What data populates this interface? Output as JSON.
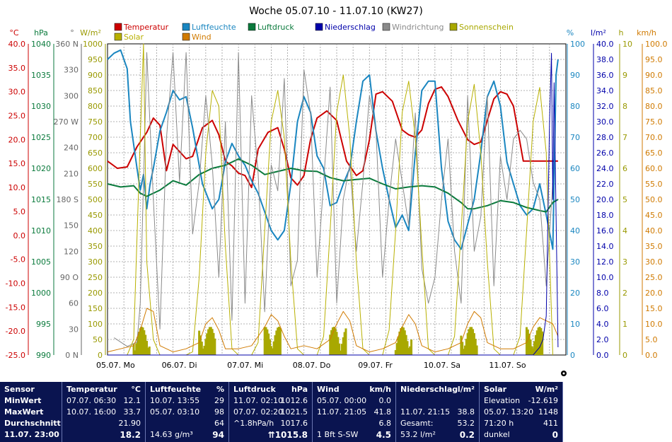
{
  "chart_data": {
    "type": "line",
    "title": "Woche 05.07.10 - 11.07.10 (KW27)",
    "legend": [
      {
        "label": "Temperatur",
        "color": "#cc0000"
      },
      {
        "label": "Luftfeuchte",
        "color": "#1a86c0"
      },
      {
        "label": "Luftdruck",
        "color": "#0a7a3c"
      },
      {
        "label": "Niederschlag",
        "color": "#0000aa"
      },
      {
        "label": "Windrichtung",
        "color": "#8a8a8a"
      },
      {
        "label": "Sonnenschein",
        "color": "#a8a800"
      },
      {
        "label": "Solar",
        "color": "#b8b000"
      },
      {
        "label": "Wind",
        "color": "#d07a00"
      }
    ],
    "axis_units": {
      "temp": "°C",
      "pressure": "hPa",
      "winddir": "°",
      "solar": "W/m²",
      "humidity": "%",
      "rain": "l/m²",
      "sunshine": "h",
      "wind": "km/h"
    },
    "axis_colors": {
      "temp": "#cc0000",
      "pressure": "#0a7a3c",
      "winddir": "#666666",
      "solar": "#999900",
      "humidity": "#1a86c0",
      "rain": "#0000aa",
      "sunshine": "#999900",
      "wind": "#d07a00"
    },
    "axes": {
      "temp": {
        "range": [
          -25,
          40
        ],
        "ticks": [
          "40.0",
          "35.0",
          "30.0",
          "25.0",
          "20.0",
          "15.0",
          "10.0",
          "5.0",
          "0.0",
          "-5.0",
          "-10.0",
          "-15.0",
          "-20.0",
          "-25.0"
        ]
      },
      "pressure": {
        "range": [
          990,
          1040
        ],
        "ticks": [
          "1040",
          "1035",
          "1030",
          "1025",
          "1020",
          "1015",
          "1010",
          "1005",
          "1000",
          "995",
          "990"
        ]
      },
      "winddir": {
        "range": [
          0,
          360
        ],
        "ticks": [
          "360 N",
          "330",
          "300",
          "270 W",
          "240",
          "210",
          "180 S",
          "150",
          "120",
          "90 O",
          "60",
          "30",
          "0 N"
        ]
      },
      "solar": {
        "range": [
          0,
          1000
        ],
        "ticks": [
          "1000",
          "950",
          "900",
          "850",
          "800",
          "750",
          "700",
          "650",
          "600",
          "550",
          "500",
          "450",
          "400",
          "350",
          "300",
          "250",
          "200",
          "150",
          "100",
          "50",
          "0"
        ]
      },
      "humidity": {
        "range": [
          0,
          100
        ],
        "ticks": [
          "100",
          "90",
          "80",
          "70",
          "60",
          "50",
          "40",
          "30",
          "20",
          "10",
          "0"
        ]
      },
      "rain": {
        "range": [
          0,
          40
        ],
        "ticks": [
          "40.0",
          "38.0",
          "36.0",
          "34.0",
          "32.0",
          "30.0",
          "28.0",
          "26.0",
          "24.0",
          "22.0",
          "20.0",
          "18.0",
          "16.0",
          "14.0",
          "12.0",
          "10.0",
          "8.0",
          "6.0",
          "4.0",
          "2.0",
          "0.0"
        ]
      },
      "sunshine": {
        "range": [
          0,
          10
        ],
        "ticks": [
          "10",
          "9",
          "8",
          "7",
          "6",
          "5",
          "4",
          "3",
          "2",
          "1",
          "0"
        ]
      },
      "wind": {
        "range": [
          0,
          100
        ],
        "ticks": [
          "100.0",
          "95.0",
          "90.0",
          "85.0",
          "80.0",
          "75.0",
          "70.0",
          "65.0",
          "60.0",
          "55.0",
          "50.0",
          "45.0",
          "40.0",
          "35.0",
          "30.0",
          "25.0",
          "20.0",
          "15.0",
          "10.0",
          "5.0",
          "0.0"
        ]
      }
    },
    "x_labels": [
      "05.07. Mo",
      "06.07. Di",
      "07.07. Mi",
      "08.07. Do",
      "09.07. Fr",
      "10.07. Sa",
      "11.07. So"
    ],
    "grid": true,
    "days": 7,
    "series": [
      {
        "name": "Temperatur",
        "axis": "temp",
        "color": "#cc0000",
        "x": [
          0,
          0.15,
          0.3,
          0.45,
          0.6,
          0.7,
          0.8,
          0.9,
          1.0,
          1.1,
          1.2,
          1.3,
          1.45,
          1.6,
          1.7,
          1.8,
          1.9,
          2.0,
          2.1,
          2.2,
          2.3,
          2.45,
          2.6,
          2.7,
          2.8,
          2.9,
          3.0,
          3.1,
          3.2,
          3.35,
          3.5,
          3.65,
          3.8,
          3.9,
          4.0,
          4.1,
          4.2,
          4.35,
          4.5,
          4.6,
          4.7,
          4.8,
          4.9,
          5.0,
          5.1,
          5.2,
          5.35,
          5.5,
          5.6,
          5.7,
          5.8,
          5.9,
          6.0,
          6.1,
          6.2,
          6.35,
          6.5,
          6.6,
          6.7,
          6.8,
          6.88
        ],
        "y": [
          15.5,
          14.0,
          14.3,
          18.5,
          21.5,
          24.5,
          23.0,
          13.5,
          19.0,
          17.5,
          16.0,
          16.5,
          22.5,
          24.0,
          21.0,
          15.5,
          14.5,
          13.0,
          12.5,
          10.0,
          18.0,
          21.5,
          22.5,
          18.0,
          12.0,
          10.5,
          12.5,
          20.0,
          24.5,
          26.0,
          24.0,
          15.5,
          12.5,
          13.5,
          20.0,
          29.5,
          30.0,
          28.0,
          22.0,
          21.0,
          20.5,
          22.0,
          27.5,
          30.5,
          31.0,
          29.0,
          24.0,
          20.0,
          19.0,
          19.5,
          24.0,
          28.5,
          30.0,
          29.5,
          27.0,
          15.5,
          15.5,
          15.5,
          15.5,
          15.5,
          15.5
        ]
      },
      {
        "name": "Luftfeuchte",
        "axis": "humidity",
        "color": "#1a86c0",
        "x": [
          0,
          0.1,
          0.2,
          0.3,
          0.35,
          0.45,
          0.5,
          0.55,
          0.6,
          0.65,
          0.7,
          0.8,
          0.9,
          1.0,
          1.1,
          1.2,
          1.3,
          1.45,
          1.6,
          1.7,
          1.8,
          1.9,
          2.0,
          2.1,
          2.2,
          2.3,
          2.4,
          2.5,
          2.6,
          2.7,
          2.8,
          2.9,
          3.0,
          3.1,
          3.2,
          3.3,
          3.4,
          3.5,
          3.6,
          3.7,
          3.8,
          3.9,
          4.0,
          4.1,
          4.2,
          4.3,
          4.4,
          4.5,
          4.6,
          4.7,
          4.8,
          4.9,
          5.0,
          5.1,
          5.2,
          5.3,
          5.4,
          5.5,
          5.6,
          5.7,
          5.8,
          5.9,
          6.0,
          6.1,
          6.2,
          6.3,
          6.4,
          6.5,
          6.6,
          6.7,
          6.8,
          6.85,
          6.88
        ],
        "y": [
          95,
          97,
          98,
          92,
          75,
          60,
          53,
          58,
          47,
          55,
          60,
          72,
          78,
          85,
          82,
          83,
          73,
          55,
          47,
          50,
          62,
          68,
          64,
          61,
          56,
          52,
          46,
          40,
          37,
          40,
          55,
          75,
          83,
          78,
          64,
          60,
          48,
          49,
          55,
          60,
          75,
          88,
          90,
          72,
          60,
          50,
          41,
          45,
          40,
          65,
          85,
          88,
          88,
          60,
          43,
          37,
          34,
          42,
          50,
          65,
          83,
          88,
          80,
          62,
          55,
          48,
          45,
          47,
          55,
          45,
          34,
          90,
          95
        ]
      },
      {
        "name": "Luftdruck",
        "axis": "pressure",
        "color": "#0a7a3c",
        "x": [
          0,
          0.2,
          0.4,
          0.5,
          0.6,
          0.8,
          1.0,
          1.2,
          1.4,
          1.6,
          1.8,
          2.0,
          2.2,
          2.4,
          2.6,
          2.8,
          3.0,
          3.2,
          3.4,
          3.6,
          3.8,
          4.0,
          4.2,
          4.4,
          4.6,
          4.8,
          5.0,
          5.2,
          5.4,
          5.5,
          5.6,
          5.8,
          6.0,
          6.2,
          6.4,
          6.6,
          6.7,
          6.8,
          6.88
        ],
        "y": [
          1017.5,
          1017.0,
          1017.2,
          1016.0,
          1015.5,
          1016.5,
          1018.0,
          1017.3,
          1019.0,
          1020.0,
          1020.5,
          1021.5,
          1020.5,
          1019.0,
          1019.5,
          1020.0,
          1019.6,
          1019.5,
          1018.5,
          1018.0,
          1018.2,
          1018.4,
          1017.5,
          1016.7,
          1017.0,
          1017.2,
          1017.0,
          1016.0,
          1014.5,
          1013.5,
          1013.5,
          1014.0,
          1014.8,
          1014.5,
          1013.7,
          1013.2,
          1013.0,
          1014.5,
          1015.0
        ]
      },
      {
        "name": "Windrichtung",
        "axis": "winddir",
        "color": "#8a8a8a",
        "x": [
          0.1,
          0.3,
          0.45,
          0.5,
          0.55,
          0.6,
          0.7,
          0.8,
          0.9,
          1.0,
          1.1,
          1.2,
          1.3,
          1.4,
          1.5,
          1.6,
          1.7,
          1.8,
          1.9,
          2.0,
          2.1,
          2.2,
          2.3,
          2.4,
          2.5,
          2.6,
          2.7,
          2.8,
          2.9,
          3.0,
          3.1,
          3.2,
          3.3,
          3.4,
          3.5,
          3.6,
          3.7,
          3.8,
          3.9,
          4.0,
          4.1,
          4.2,
          4.3,
          4.4,
          4.5,
          4.6,
          4.7,
          4.8,
          4.9,
          5.0,
          5.1,
          5.2,
          5.3,
          5.4,
          5.5,
          5.6,
          5.7,
          5.8,
          5.9,
          6.0,
          6.1,
          6.2,
          6.3,
          6.4,
          6.5,
          6.6,
          6.7,
          6.8
        ],
        "y": [
          20,
          10,
          15,
          60,
          200,
          350,
          180,
          30,
          250,
          350,
          200,
          350,
          140,
          200,
          300,
          220,
          90,
          270,
          40,
          350,
          60,
          300,
          210,
          50,
          220,
          190,
          320,
          80,
          110,
          330,
          280,
          90,
          200,
          310,
          60,
          180,
          220,
          120,
          200,
          300,
          260,
          90,
          180,
          250,
          200,
          150,
          280,
          100,
          60,
          90,
          180,
          250,
          120,
          60,
          300,
          120,
          160,
          300,
          80,
          230,
          180,
          250,
          260,
          250,
          200,
          180,
          80,
          200
        ]
      },
      {
        "name": "Solar",
        "axis": "solar",
        "color": "#b8b000",
        "x": [
          0.2,
          0.3,
          0.4,
          0.5,
          0.55,
          0.6,
          0.7,
          0.8,
          0.9,
          1.0,
          1.1,
          1.2,
          1.3,
          1.4,
          1.5,
          1.6,
          1.7,
          1.8,
          1.9,
          2.0,
          2.1,
          2.2,
          2.3,
          2.4,
          2.5,
          2.6,
          2.7,
          2.8,
          2.9,
          3.0,
          3.1,
          3.2,
          3.3,
          3.4,
          3.5,
          3.6,
          3.7,
          3.8,
          3.9,
          4.0,
          4.1,
          4.2,
          4.3,
          4.4,
          4.5,
          4.6,
          4.7,
          4.8,
          4.9,
          5.0,
          5.1,
          5.2,
          5.3,
          5.4,
          5.5,
          5.6,
          5.7,
          5.8,
          5.9,
          6.0,
          6.1,
          6.2,
          6.3,
          6.4,
          6.5,
          6.6,
          6.7,
          6.8
        ],
        "y": [
          0,
          0,
          50,
          700,
          1000,
          300,
          50,
          0,
          0,
          0,
          0,
          0,
          10,
          250,
          650,
          850,
          800,
          350,
          20,
          0,
          0,
          0,
          40,
          400,
          750,
          850,
          700,
          300,
          20,
          0,
          0,
          0,
          60,
          400,
          780,
          900,
          700,
          300,
          20,
          0,
          0,
          0,
          80,
          400,
          780,
          880,
          700,
          350,
          20,
          0,
          0,
          0,
          60,
          400,
          750,
          870,
          650,
          300,
          20,
          0,
          0,
          0,
          60,
          400,
          750,
          860,
          650,
          0
        ]
      },
      {
        "name": "Wind",
        "axis": "wind",
        "color": "#d07a00",
        "x": [
          0,
          0.2,
          0.4,
          0.5,
          0.6,
          0.7,
          0.8,
          1.0,
          1.2,
          1.4,
          1.5,
          1.6,
          1.7,
          1.8,
          2.0,
          2.2,
          2.4,
          2.5,
          2.6,
          2.7,
          2.8,
          3.0,
          3.2,
          3.4,
          3.5,
          3.6,
          3.7,
          3.8,
          4.0,
          4.2,
          4.4,
          4.5,
          4.6,
          4.7,
          4.8,
          5.0,
          5.2,
          5.4,
          5.5,
          5.6,
          5.7,
          5.8,
          6.0,
          6.2,
          6.4,
          6.5,
          6.6,
          6.7,
          6.8,
          6.88
        ],
        "y": [
          1,
          2,
          3,
          8,
          15,
          14,
          3,
          1,
          2,
          4,
          10,
          12,
          8,
          2,
          2,
          3,
          9,
          13,
          11,
          6,
          2,
          3,
          2,
          5,
          10,
          14,
          11,
          3,
          1,
          2,
          4,
          9,
          13,
          10,
          3,
          1,
          2,
          4,
          10,
          14,
          12,
          4,
          2,
          2,
          4,
          9,
          12,
          11,
          10,
          6
        ]
      },
      {
        "name": "Niederschlag",
        "axis": "rain",
        "color": "#0000aa",
        "x": [
          0,
          6.0,
          6.3,
          6.5,
          6.55,
          6.6,
          6.65,
          6.7,
          6.72,
          6.75,
          6.78,
          6.8,
          6.82,
          6.88
        ],
        "y": [
          0,
          0,
          0,
          0,
          0.5,
          1,
          2,
          5,
          15,
          30,
          38.8,
          20,
          35,
          1
        ]
      }
    ]
  },
  "stats": {
    "sensor": {
      "header": "Sensor",
      "rows": [
        "MinWert",
        "MaxWert",
        "Durchschnitt",
        "11.07. 23:00"
      ]
    },
    "temperatur": {
      "header": "Temperatur",
      "unit": "°C",
      "min_time": "07.07. 06:30",
      "min_val": "12.1",
      "max_time": "10.07. 16:00",
      "max_val": "33.7",
      "avg": "21.90",
      "current": "18.2"
    },
    "luftfeuchte": {
      "header": "Luftfeuchte",
      "unit": "%",
      "min_time": "10.07. 13:55",
      "min_val": "29",
      "max_time": "05.07. 03:10",
      "max_val": "98",
      "avg": "64",
      "extra": "14.63 g/m³",
      "current": "94"
    },
    "luftdruck": {
      "header": "Luftdruck",
      "unit": "hPa",
      "min_time": "11.07. 02:10",
      "min_val": "1012.6",
      "max_time": "07.07. 02:20",
      "max_val": "1021.5",
      "avg_label": "^1.8hPa/h",
      "avg": "1017.6",
      "current": "1015.8",
      "trend_symbol": "⇈"
    },
    "wind": {
      "header": "Wind",
      "unit": "km/h",
      "min_time": "05.07. 00:00",
      "min_val": "0.0",
      "max_time": "11.07. 21:05",
      "max_val": "41.8",
      "avg": "6.8",
      "extra": "1 Bft S-SW",
      "current": "4.5"
    },
    "niederschlag": {
      "header": "Niederschlag",
      "unit": "l/m²",
      "max_time": "11.07. 21:15",
      "max_val": "38.8",
      "total_label": "Gesamt:",
      "total": "53.2",
      "extra": "53.2 l/m²",
      "current": "0.2"
    },
    "solar": {
      "header": "Solar",
      "unit": "W/m²",
      "elev_label": "Elevation",
      "elev": "-12.619",
      "max_time": "05.07. 13:20",
      "max_val": "1148",
      "sun_label": "71:20 h",
      "sun_val": "411",
      "state": "dunkel",
      "current": "0"
    }
  }
}
